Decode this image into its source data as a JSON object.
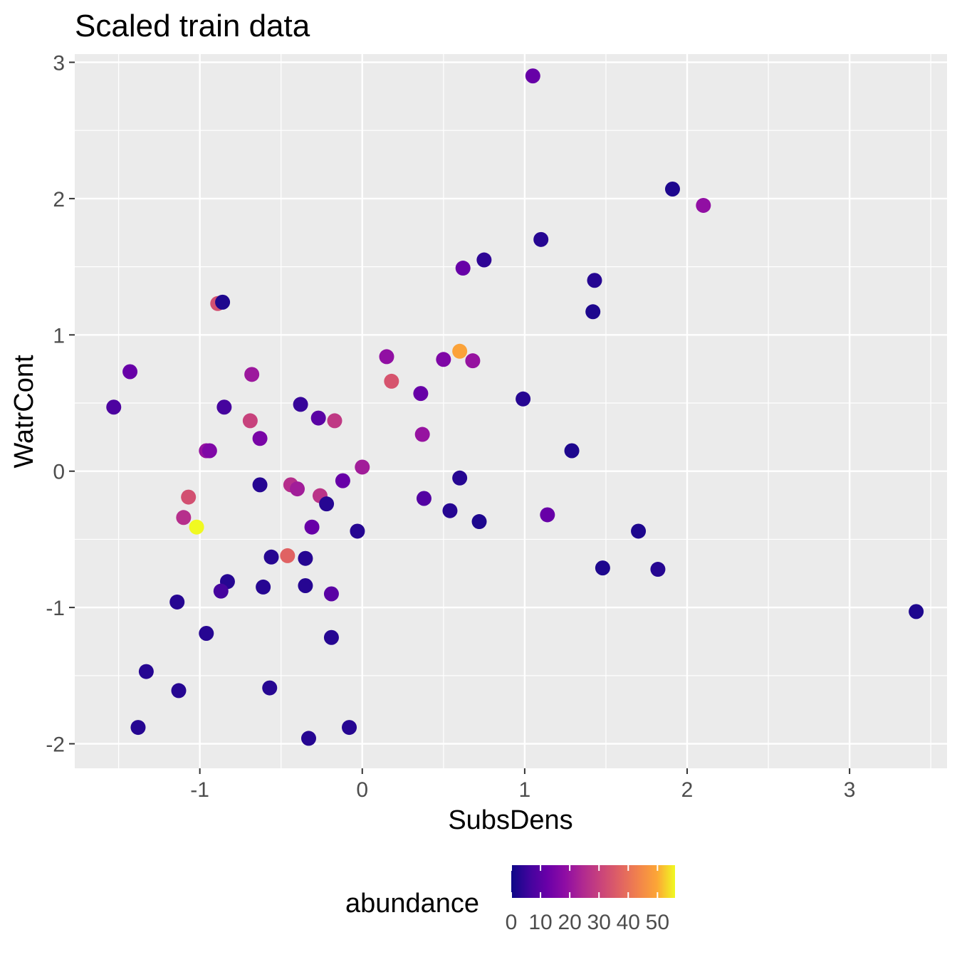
{
  "chart_data": {
    "type": "scatter",
    "title": "Scaled train data",
    "xlabel": "SubsDens",
    "ylabel": "WatrCont",
    "xlim": [
      -1.77,
      3.6
    ],
    "ylim": [
      -2.18,
      3.06
    ],
    "x_ticks": [
      -1,
      0,
      1,
      2,
      3
    ],
    "y_ticks": [
      -2,
      -1,
      0,
      1,
      2,
      3
    ],
    "x_tick_labels": [
      "-1",
      "0",
      "1",
      "2",
      "3"
    ],
    "y_tick_labels": [
      "-2",
      "-1",
      "0",
      "1",
      "2",
      "3"
    ],
    "grid": true,
    "legend": {
      "title": "abundance",
      "position": "bottom",
      "type": "colorbar",
      "colormap": "plasma",
      "range": [
        0,
        56
      ],
      "breaks": [
        0,
        10,
        20,
        30,
        40,
        50
      ],
      "labels": [
        "0",
        "10",
        "20",
        "30",
        "40",
        "50"
      ]
    },
    "points": [
      {
        "x": 1.05,
        "y": 2.9,
        "abundance": 12
      },
      {
        "x": 1.91,
        "y": 2.07,
        "abundance": 2
      },
      {
        "x": 2.1,
        "y": 1.95,
        "abundance": 19
      },
      {
        "x": 1.1,
        "y": 1.7,
        "abundance": 3
      },
      {
        "x": 0.75,
        "y": 1.55,
        "abundance": 4
      },
      {
        "x": 0.62,
        "y": 1.49,
        "abundance": 12
      },
      {
        "x": 1.43,
        "y": 1.4,
        "abundance": 3
      },
      {
        "x": 1.42,
        "y": 1.17,
        "abundance": 2
      },
      {
        "x": -0.89,
        "y": 1.23,
        "abundance": 33
      },
      {
        "x": -0.86,
        "y": 1.24,
        "abundance": 2
      },
      {
        "x": 0.6,
        "y": 0.88,
        "abundance": 49
      },
      {
        "x": 0.15,
        "y": 0.84,
        "abundance": 19
      },
      {
        "x": 0.5,
        "y": 0.82,
        "abundance": 16
      },
      {
        "x": 0.68,
        "y": 0.81,
        "abundance": 20
      },
      {
        "x": -1.43,
        "y": 0.73,
        "abundance": 12
      },
      {
        "x": -0.68,
        "y": 0.71,
        "abundance": 21
      },
      {
        "x": 0.18,
        "y": 0.66,
        "abundance": 34
      },
      {
        "x": 0.36,
        "y": 0.57,
        "abundance": 12
      },
      {
        "x": 0.99,
        "y": 0.53,
        "abundance": 3
      },
      {
        "x": -1.53,
        "y": 0.47,
        "abundance": 8
      },
      {
        "x": -0.85,
        "y": 0.47,
        "abundance": 7
      },
      {
        "x": -0.38,
        "y": 0.49,
        "abundance": 5
      },
      {
        "x": -0.27,
        "y": 0.39,
        "abundance": 10
      },
      {
        "x": -0.17,
        "y": 0.37,
        "abundance": 28
      },
      {
        "x": -0.69,
        "y": 0.37,
        "abundance": 30
      },
      {
        "x": 0.37,
        "y": 0.27,
        "abundance": 20
      },
      {
        "x": -0.63,
        "y": 0.24,
        "abundance": 15
      },
      {
        "x": -0.96,
        "y": 0.15,
        "abundance": 20
      },
      {
        "x": -0.94,
        "y": 0.15,
        "abundance": 16
      },
      {
        "x": 1.29,
        "y": 0.15,
        "abundance": 2
      },
      {
        "x": 0.0,
        "y": 0.03,
        "abundance": 22
      },
      {
        "x": 0.6,
        "y": -0.05,
        "abundance": 3
      },
      {
        "x": -0.12,
        "y": -0.07,
        "abundance": 12
      },
      {
        "x": -0.63,
        "y": -0.1,
        "abundance": 3
      },
      {
        "x": -0.44,
        "y": -0.1,
        "abundance": 26
      },
      {
        "x": -0.4,
        "y": -0.13,
        "abundance": 22
      },
      {
        "x": -1.07,
        "y": -0.19,
        "abundance": 33
      },
      {
        "x": -0.26,
        "y": -0.18,
        "abundance": 27
      },
      {
        "x": 0.38,
        "y": -0.2,
        "abundance": 9
      },
      {
        "x": -0.22,
        "y": -0.24,
        "abundance": 3
      },
      {
        "x": 0.54,
        "y": -0.29,
        "abundance": 3
      },
      {
        "x": 1.14,
        "y": -0.32,
        "abundance": 12
      },
      {
        "x": -1.1,
        "y": -0.34,
        "abundance": 26
      },
      {
        "x": 0.72,
        "y": -0.37,
        "abundance": 2
      },
      {
        "x": -1.02,
        "y": -0.41,
        "abundance": 56
      },
      {
        "x": -0.31,
        "y": -0.41,
        "abundance": 12
      },
      {
        "x": -0.03,
        "y": -0.44,
        "abundance": 3
      },
      {
        "x": 1.7,
        "y": -0.44,
        "abundance": 2
      },
      {
        "x": -0.56,
        "y": -0.63,
        "abundance": 3
      },
      {
        "x": -0.46,
        "y": -0.62,
        "abundance": 37
      },
      {
        "x": -0.35,
        "y": -0.64,
        "abundance": 3
      },
      {
        "x": 1.48,
        "y": -0.71,
        "abundance": 2
      },
      {
        "x": 1.82,
        "y": -0.72,
        "abundance": 3
      },
      {
        "x": -0.83,
        "y": -0.81,
        "abundance": 3
      },
      {
        "x": -0.61,
        "y": -0.85,
        "abundance": 3
      },
      {
        "x": -0.35,
        "y": -0.84,
        "abundance": 3
      },
      {
        "x": -0.87,
        "y": -0.88,
        "abundance": 7
      },
      {
        "x": -0.19,
        "y": -0.9,
        "abundance": 10
      },
      {
        "x": -1.14,
        "y": -0.96,
        "abundance": 3
      },
      {
        "x": -0.96,
        "y": -1.19,
        "abundance": 3
      },
      {
        "x": -0.19,
        "y": -1.22,
        "abundance": 3
      },
      {
        "x": 3.41,
        "y": -1.03,
        "abundance": 2
      },
      {
        "x": -1.33,
        "y": -1.47,
        "abundance": 3
      },
      {
        "x": -1.13,
        "y": -1.61,
        "abundance": 3
      },
      {
        "x": -0.57,
        "y": -1.59,
        "abundance": 3
      },
      {
        "x": -1.38,
        "y": -1.88,
        "abundance": 3
      },
      {
        "x": -0.08,
        "y": -1.88,
        "abundance": 3
      },
      {
        "x": -0.33,
        "y": -1.96,
        "abundance": 3
      }
    ]
  }
}
